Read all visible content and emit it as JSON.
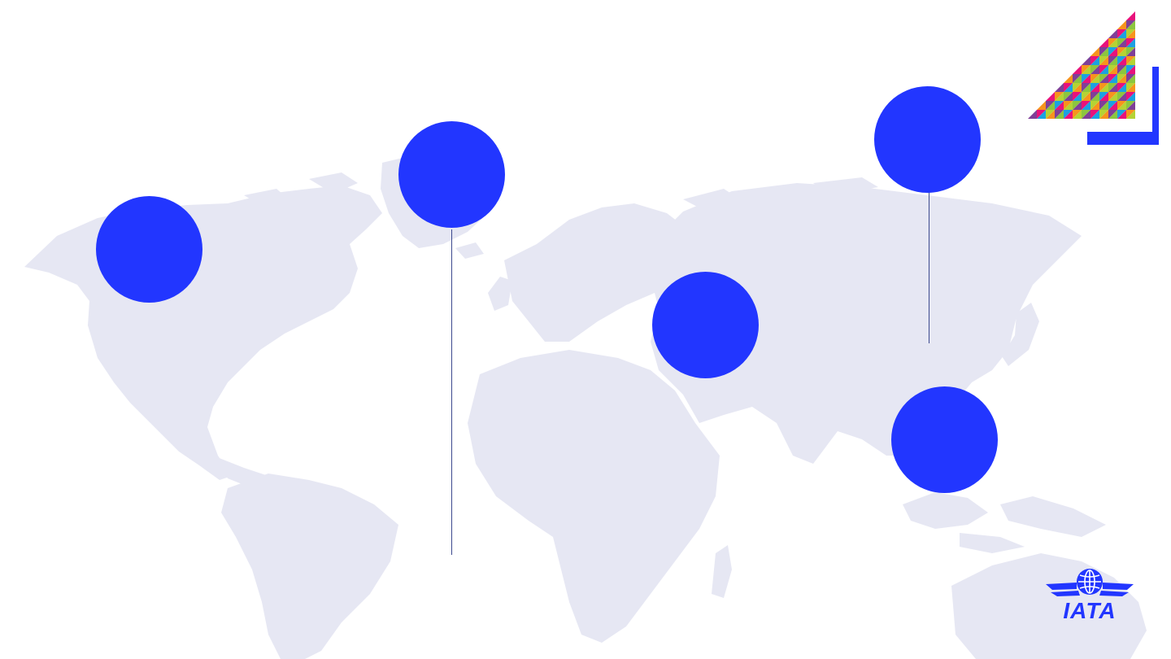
{
  "colors": {
    "accent": "#2236FF",
    "map_land": "#E6E7F3",
    "connector": "#3D4A8F",
    "pattern": [
      "#E8127C",
      "#8CC63F",
      "#F7941D",
      "#1BA1E2",
      "#7F3F98",
      "#B5D334"
    ]
  },
  "map": {
    "icon": "world-map-icon"
  },
  "markers": [
    {
      "name": "marker-north-america",
      "label": ""
    },
    {
      "name": "marker-greenland",
      "label": ""
    },
    {
      "name": "marker-middle-east",
      "label": ""
    },
    {
      "name": "marker-north-asia",
      "label": ""
    },
    {
      "name": "marker-southeast-asia",
      "label": ""
    }
  ],
  "branding": {
    "corner_decoration": "triangle-pattern-logo",
    "logo_text": "IATA",
    "logo_icon": "iata-globe-wings-logo"
  }
}
